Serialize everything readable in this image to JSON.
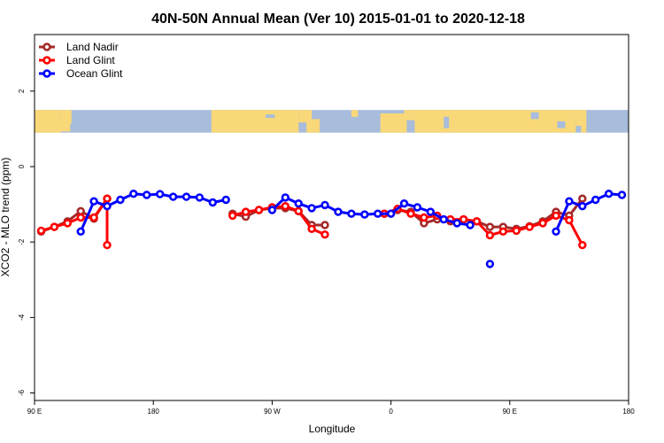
{
  "chart_data": {
    "type": "line",
    "title": "40N-50N Annual Mean (Ver 10)   2015-01-01 to 2020-12-18",
    "xlabel": "Longitude",
    "ylabel": "XCO2 - MLO trend (ppm)",
    "xlim": [
      90,
      540
    ],
    "ylim": [
      -6.2,
      3.5
    ],
    "x_ticks": [
      {
        "value": 90,
        "label": "90 E"
      },
      {
        "value": 180,
        "label": "180"
      },
      {
        "value": 270,
        "label": "90 W"
      },
      {
        "value": 360,
        "label": "0"
      },
      {
        "value": 450,
        "label": "90 E"
      },
      {
        "value": 540,
        "label": "180"
      }
    ],
    "y_ticks": [
      {
        "value": 2,
        "label": "2"
      },
      {
        "value": 0,
        "label": "0"
      },
      {
        "value": -2,
        "label": "-2"
      },
      {
        "value": -4,
        "label": "-4"
      },
      {
        "value": -6,
        "label": "-6"
      }
    ],
    "legend_position": "top-left",
    "grid": false,
    "map_strip": {
      "y_range": [
        0.9,
        1.5
      ],
      "ocean_color": "#a8bcdc",
      "land_color": "#f8d878"
    },
    "series": [
      {
        "name": "Land Nadir",
        "color": "#a52a2a",
        "segments": [
          [
            [
              95,
              -1.72
            ],
            [
              105,
              -1.6
            ],
            [
              115,
              -1.45
            ],
            [
              125,
              -1.18
            ],
            [
              135,
              -1.38
            ],
            [
              145,
              -0.85
            ]
          ],
          [
            [
              240,
              -1.25
            ],
            [
              250,
              -1.33
            ],
            [
              260,
              -1.15
            ],
            [
              270,
              -1.1
            ],
            [
              280,
              -1.1
            ],
            [
              290,
              -1.18
            ],
            [
              300,
              -1.55
            ],
            [
              310,
              -1.55
            ]
          ],
          [
            [
              355,
              -1.25
            ],
            [
              365,
              -1.15
            ],
            [
              375,
              -1.2
            ],
            [
              385,
              -1.5
            ],
            [
              395,
              -1.4
            ],
            [
              405,
              -1.45
            ],
            [
              415,
              -1.4
            ],
            [
              425,
              -1.45
            ],
            [
              435,
              -1.6
            ],
            [
              445,
              -1.6
            ],
            [
              455,
              -1.65
            ],
            [
              465,
              -1.58
            ],
            [
              475,
              -1.45
            ],
            [
              485,
              -1.2
            ],
            [
              495,
              -1.3
            ],
            [
              505,
              -0.85
            ]
          ]
        ]
      },
      {
        "name": "Land Glint",
        "color": "#ff0000",
        "segments": [
          [
            [
              95,
              -1.7
            ],
            [
              105,
              -1.6
            ],
            [
              115,
              -1.5
            ],
            [
              125,
              -1.35
            ],
            [
              135,
              -1.35
            ],
            [
              145,
              -0.85
            ],
            [
              145,
              -2.08
            ]
          ],
          [
            [
              240,
              -1.3
            ],
            [
              250,
              -1.2
            ],
            [
              260,
              -1.15
            ],
            [
              270,
              -1.08
            ],
            [
              280,
              -1.05
            ],
            [
              290,
              -1.18
            ],
            [
              300,
              -1.65
            ],
            [
              310,
              -1.8
            ]
          ],
          [
            [
              355,
              -1.25
            ],
            [
              365,
              -1.12
            ],
            [
              375,
              -1.25
            ],
            [
              385,
              -1.35
            ],
            [
              395,
              -1.3
            ],
            [
              405,
              -1.4
            ],
            [
              415,
              -1.4
            ],
            [
              425,
              -1.45
            ],
            [
              435,
              -1.82
            ],
            [
              445,
              -1.72
            ],
            [
              455,
              -1.7
            ],
            [
              465,
              -1.6
            ],
            [
              475,
              -1.5
            ],
            [
              485,
              -1.3
            ],
            [
              495,
              -1.42
            ],
            [
              505,
              -2.08
            ]
          ]
        ]
      },
      {
        "name": "Ocean Glint",
        "color": "#0000ff",
        "segments": [
          [
            [
              125,
              -1.72
            ],
            [
              135,
              -0.92
            ],
            [
              145,
              -1.05
            ],
            [
              155,
              -0.88
            ],
            [
              165,
              -0.72
            ],
            [
              175,
              -0.75
            ],
            [
              185,
              -0.73
            ],
            [
              195,
              -0.8
            ],
            [
              205,
              -0.8
            ],
            [
              215,
              -0.82
            ],
            [
              225,
              -0.95
            ],
            [
              235,
              -0.88
            ]
          ],
          [
            [
              270,
              -1.15
            ],
            [
              280,
              -0.82
            ],
            [
              290,
              -0.98
            ],
            [
              300,
              -1.1
            ],
            [
              310,
              -1.02
            ],
            [
              320,
              -1.2
            ],
            [
              330,
              -1.25
            ],
            [
              340,
              -1.27
            ],
            [
              350,
              -1.25
            ],
            [
              360,
              -1.25
            ],
            [
              370,
              -0.98
            ],
            [
              380,
              -1.08
            ],
            [
              390,
              -1.2
            ],
            [
              400,
              -1.4
            ],
            [
              410,
              -1.5
            ],
            [
              420,
              -1.55
            ]
          ],
          [
            [
              435,
              -2.58
            ]
          ],
          [
            [
              485,
              -1.72
            ],
            [
              495,
              -0.92
            ],
            [
              505,
              -1.05
            ],
            [
              515,
              -0.88
            ],
            [
              525,
              -0.72
            ],
            [
              535,
              -0.75
            ]
          ]
        ]
      }
    ]
  }
}
